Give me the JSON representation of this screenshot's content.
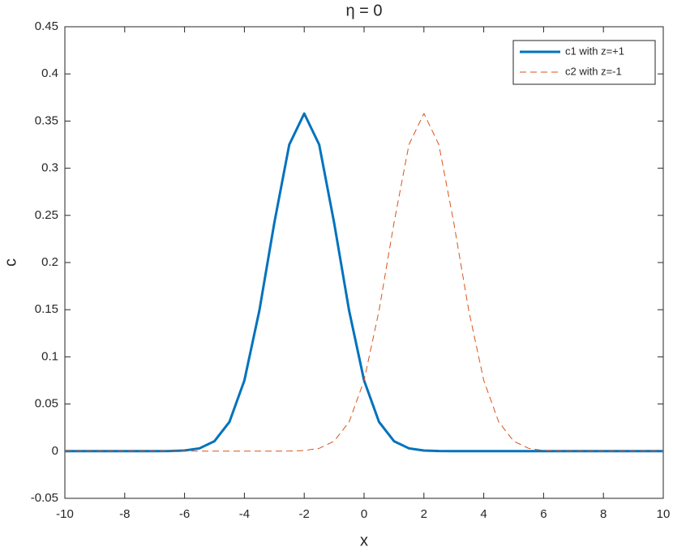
{
  "chart_data": {
    "type": "line",
    "title": "η = 0",
    "xlabel": "x",
    "ylabel": "c",
    "x": [
      -10,
      -9.5,
      -9,
      -8.5,
      -8,
      -7.5,
      -7,
      -6.5,
      -6,
      -5.5,
      -5,
      -4.5,
      -4,
      -3.5,
      -3,
      -2.5,
      -2,
      -1.5,
      -1,
      -0.5,
      0,
      0.5,
      1,
      1.5,
      2,
      2.5,
      3,
      3.5,
      4,
      4.5,
      5,
      5.5,
      6,
      6.5,
      7,
      7.5,
      8,
      8.5,
      9,
      9.5,
      10
    ],
    "series": [
      {
        "name": "c1 with z=+1",
        "color": "#0072BD",
        "dash": false,
        "values": [
          0,
          0,
          0,
          0,
          0,
          0,
          0,
          0.0001,
          0.0007,
          0.003,
          0.0106,
          0.031,
          0.075,
          0.149,
          0.242,
          0.325,
          0.358,
          0.325,
          0.242,
          0.149,
          0.075,
          0.031,
          0.0106,
          0.003,
          0.0007,
          0.0001,
          0,
          0,
          0,
          0,
          0,
          0,
          0,
          0,
          0,
          0,
          0,
          0,
          0,
          0,
          0
        ]
      },
      {
        "name": "c2 with z=-1",
        "color": "#D95319",
        "dash": true,
        "values": [
          0,
          0,
          0,
          0,
          0,
          0,
          0,
          0,
          0,
          0,
          0,
          0,
          0,
          0,
          0,
          0.0001,
          0.0007,
          0.003,
          0.0106,
          0.031,
          0.075,
          0.149,
          0.242,
          0.325,
          0.358,
          0.325,
          0.242,
          0.149,
          0.075,
          0.031,
          0.0106,
          0.003,
          0.0007,
          0.0001,
          0,
          0,
          0,
          0,
          0,
          0,
          0
        ]
      }
    ],
    "xlim": [
      -10,
      10
    ],
    "xticks": [
      -10,
      -8,
      -6,
      -4,
      -2,
      0,
      2,
      4,
      6,
      8,
      10
    ],
    "ylim": [
      -0.05,
      0.45
    ],
    "yticks": [
      -0.05,
      0,
      0.05,
      0.1,
      0.15,
      0.2,
      0.25,
      0.3,
      0.35,
      0.4,
      0.45
    ],
    "legend": "northeast",
    "grid": false
  }
}
